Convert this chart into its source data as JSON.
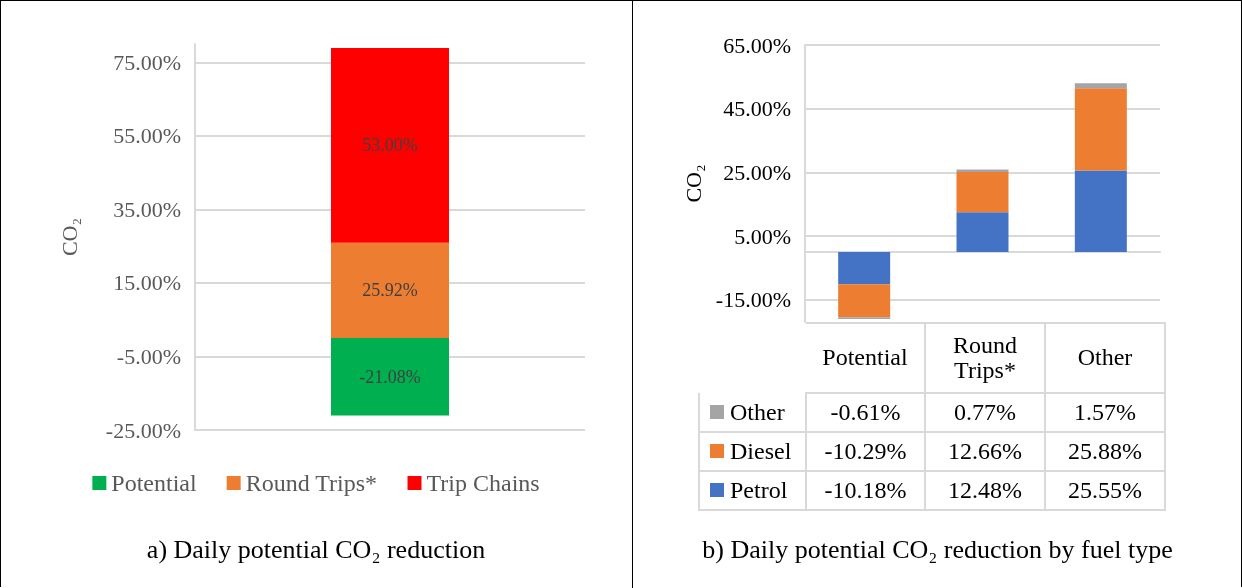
{
  "chart_data": [
    {
      "type": "bar",
      "title": "a) Daily potential CO₂ reduction",
      "ylabel": "CO₂",
      "categories": [
        null
      ],
      "stacked": true,
      "series": [
        {
          "name": "Potential",
          "color": "#00b050",
          "values": [
            -21.08
          ],
          "value_labels": [
            "-21.08%"
          ]
        },
        {
          "name": "Round Trips*",
          "color": "#ed7d31",
          "values": [
            25.92
          ],
          "value_labels": [
            "25.92%"
          ]
        },
        {
          "name": "Trip Chains",
          "color": "#ff0000",
          "values": [
            53.0
          ],
          "value_labels": [
            "53.00%"
          ]
        }
      ],
      "ylim": [
        -25,
        80
      ],
      "yticks": [
        {
          "value": -25,
          "label": "-25.00%"
        },
        {
          "value": -5,
          "label": "-5.00%"
        },
        {
          "value": 15,
          "label": "15.00%"
        },
        {
          "value": 35,
          "label": "35.00%"
        },
        {
          "value": 55,
          "label": "55.00%"
        },
        {
          "value": 75,
          "label": "75.00%"
        }
      ],
      "grid": "y",
      "legend": "bottom"
    },
    {
      "type": "bar",
      "title": "b) Daily potential CO₂ reduction by fuel type",
      "ylabel": "CO₂",
      "categories": [
        "Potential",
        "Round Trips*",
        "Other"
      ],
      "stacked": true,
      "series": [
        {
          "name": "Petrol",
          "color": "#4472c4",
          "values": [
            -10.18,
            12.48,
            25.55
          ],
          "value_labels": [
            "-10.18%",
            "12.48%",
            "25.55%"
          ]
        },
        {
          "name": "Diesel",
          "color": "#ed7d31",
          "values": [
            -10.29,
            12.66,
            25.88
          ],
          "value_labels": [
            "-10.29%",
            "12.66%",
            "25.88%"
          ]
        },
        {
          "name": "Other",
          "color": "#a5a5a5",
          "values": [
            -0.61,
            0.77,
            1.57
          ],
          "value_labels": [
            "-0.61%",
            "0.77%",
            "1.57%"
          ]
        }
      ],
      "ylim": [
        -22,
        65
      ],
      "yticks": [
        {
          "value": -15,
          "label": "-15.00%"
        },
        {
          "value": 5,
          "label": "5.00%"
        },
        {
          "value": 25,
          "label": "25.00%"
        },
        {
          "value": 45,
          "label": "45.00%"
        },
        {
          "value": 65,
          "label": "65.00%"
        }
      ],
      "grid": "y",
      "legend": "bottom left",
      "data_labels": true
    }
  ]
}
